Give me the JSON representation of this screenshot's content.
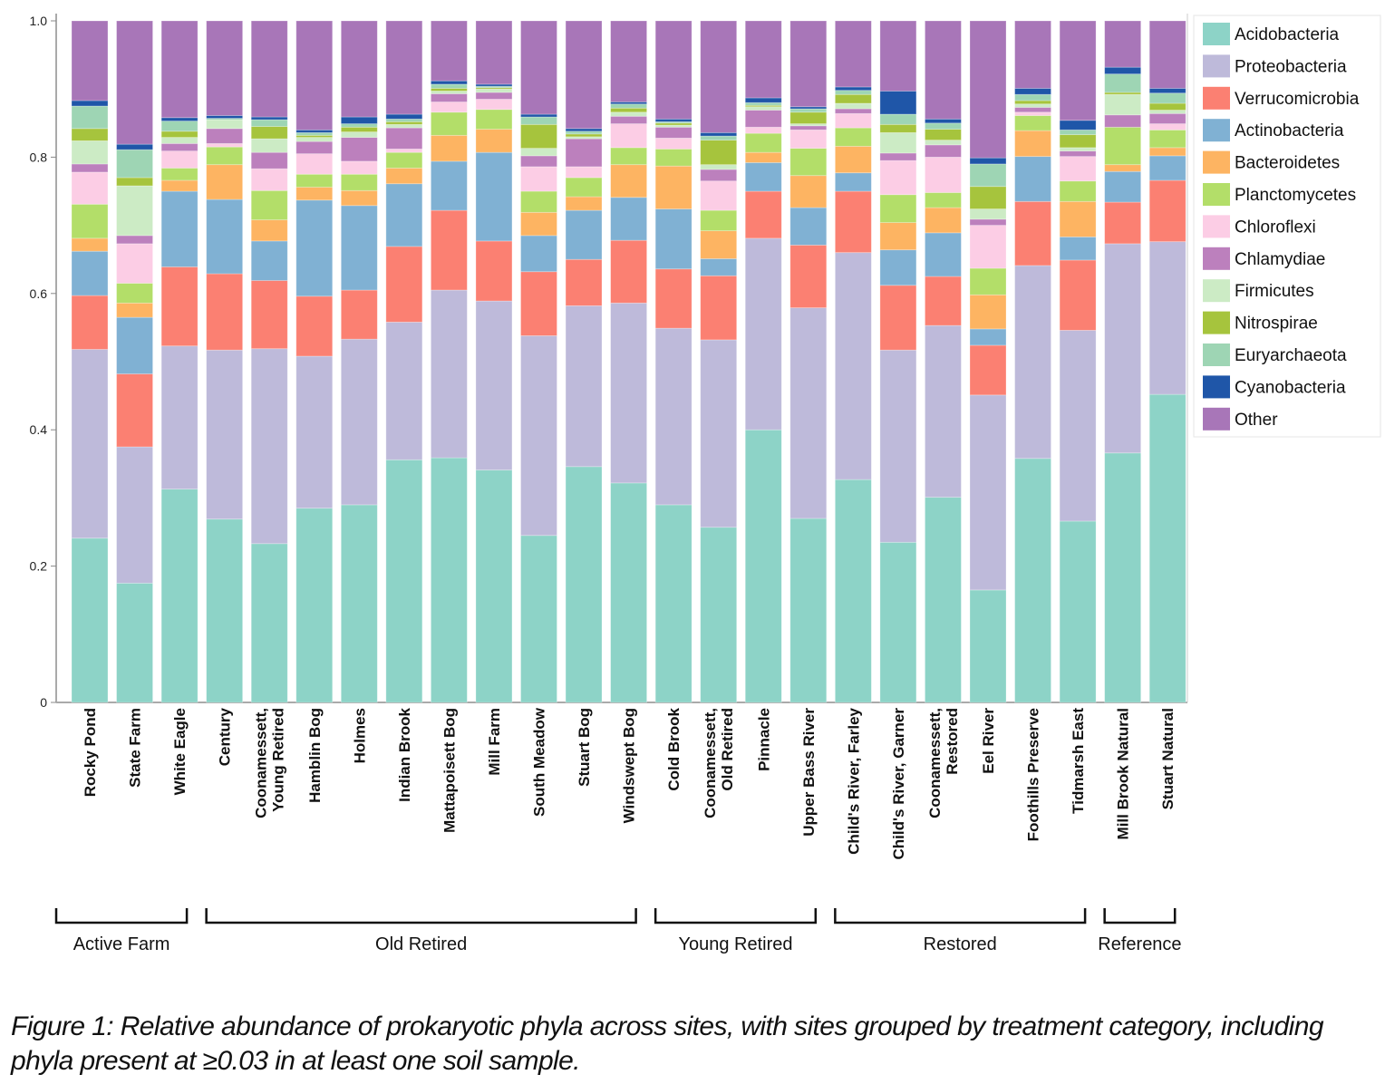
{
  "chart_data": {
    "type": "bar",
    "stacked": true,
    "title": "",
    "xlabel": "",
    "ylabel": "",
    "ylim": [
      0,
      1.0
    ],
    "yticks": [
      "0",
      "0.2",
      "0.4",
      "0.6",
      "0.8",
      "1.0"
    ],
    "ytick_values": [
      0,
      0.2,
      0.4,
      0.6,
      0.8,
      1.0
    ],
    "legend_position": "top-right",
    "categories": [
      "Rocky Pond",
      "State Farm",
      "White Eagle",
      "Century",
      "Coonamessett, Young Retired",
      "Hamblin Bog",
      "Holmes",
      "Indian Brook",
      "Mattapoisett Bog",
      "Mill Farm",
      "South Meadow",
      "Stuart Bog",
      "Windswept Bog",
      "Cold Brook",
      "Coonamessett, Old Retired",
      "Pinnacle",
      "Upper Bass River",
      "Child's River, Farley",
      "Child's River, Garner",
      "Coonamessett, Restored",
      "Eel River",
      "Foothills Preserve",
      "Tidmarsh East",
      "Mill Brook Natural",
      "Stuart Natural"
    ],
    "category_lines": [
      [
        "Rocky Pond"
      ],
      [
        "State Farm"
      ],
      [
        "White Eagle"
      ],
      [
        "Century"
      ],
      [
        "Coonamessett,",
        "Young Retired"
      ],
      [
        "Hamblin Bog"
      ],
      [
        "Holmes"
      ],
      [
        "Indian Brook"
      ],
      [
        "Mattapoisett Bog"
      ],
      [
        "Mill Farm"
      ],
      [
        "South Meadow"
      ],
      [
        "Stuart Bog"
      ],
      [
        "Windswept Bog"
      ],
      [
        "Cold Brook"
      ],
      [
        "Coonamessett,",
        "Old Retired"
      ],
      [
        "Pinnacle"
      ],
      [
        "Upper Bass River"
      ],
      [
        "Child's River, Farley"
      ],
      [
        "Child's River, Garner"
      ],
      [
        "Coonamessett,",
        "Restored"
      ],
      [
        "Eel River"
      ],
      [
        "Foothills Preserve"
      ],
      [
        "Tidmarsh East"
      ],
      [
        "Mill Brook Natural"
      ],
      [
        "Stuart Natural"
      ]
    ],
    "groups": [
      {
        "label": "Active Farm",
        "start": 0,
        "end": 2
      },
      {
        "label": "Old Retired",
        "start": 3,
        "end": 12
      },
      {
        "label": "Young Retired",
        "start": 13,
        "end": 16
      },
      {
        "label": "Restored",
        "start": 17,
        "end": 22
      },
      {
        "label": "Reference",
        "start": 23,
        "end": 24
      }
    ],
    "series": [
      {
        "name": "Acidobacteria",
        "color": "#8dd3c7",
        "values": [
          0.241,
          0.175,
          0.313,
          0.269,
          0.233,
          0.285,
          0.29,
          0.356,
          0.359,
          0.341,
          0.245,
          0.346,
          0.322,
          0.29,
          0.257,
          0.4,
          0.27,
          0.327,
          0.235,
          0.301,
          0.165,
          0.358,
          0.266,
          0.366,
          0.452
        ]
      },
      {
        "name": "Proteobacteria",
        "color": "#bebada",
        "values": [
          0.277,
          0.2,
          0.21,
          0.248,
          0.286,
          0.223,
          0.243,
          0.202,
          0.246,
          0.248,
          0.293,
          0.236,
          0.264,
          0.259,
          0.275,
          0.281,
          0.309,
          0.333,
          0.282,
          0.252,
          0.286,
          0.283,
          0.28,
          0.307,
          0.224
        ]
      },
      {
        "name": "Verrucomicrobia",
        "color": "#fb8072",
        "values": [
          0.079,
          0.107,
          0.116,
          0.112,
          0.1,
          0.088,
          0.072,
          0.111,
          0.117,
          0.088,
          0.094,
          0.068,
          0.092,
          0.087,
          0.094,
          0.069,
          0.092,
          0.09,
          0.095,
          0.072,
          0.073,
          0.094,
          0.103,
          0.061,
          0.09
        ]
      },
      {
        "name": "Actinobacteria",
        "color": "#80b1d3",
        "values": [
          0.065,
          0.083,
          0.111,
          0.109,
          0.058,
          0.141,
          0.124,
          0.092,
          0.072,
          0.13,
          0.053,
          0.072,
          0.063,
          0.088,
          0.025,
          0.042,
          0.055,
          0.027,
          0.052,
          0.064,
          0.024,
          0.066,
          0.034,
          0.045,
          0.036
        ]
      },
      {
        "name": "Bacteroidetes",
        "color": "#fdb462",
        "values": [
          0.019,
          0.021,
          0.016,
          0.051,
          0.031,
          0.019,
          0.022,
          0.023,
          0.038,
          0.034,
          0.034,
          0.02,
          0.048,
          0.063,
          0.041,
          0.015,
          0.047,
          0.039,
          0.04,
          0.037,
          0.05,
          0.038,
          0.052,
          0.01,
          0.012
        ]
      },
      {
        "name": "Planctomycetes",
        "color": "#b3de69",
        "values": [
          0.05,
          0.029,
          0.018,
          0.026,
          0.043,
          0.019,
          0.024,
          0.023,
          0.034,
          0.029,
          0.031,
          0.028,
          0.025,
          0.025,
          0.03,
          0.028,
          0.04,
          0.027,
          0.041,
          0.022,
          0.039,
          0.022,
          0.03,
          0.055,
          0.026
        ]
      },
      {
        "name": "Chloroflexi",
        "color": "#fccde5",
        "values": [
          0.047,
          0.058,
          0.025,
          0.005,
          0.032,
          0.03,
          0.019,
          0.005,
          0.015,
          0.015,
          0.036,
          0.016,
          0.035,
          0.016,
          0.043,
          0.009,
          0.027,
          0.021,
          0.05,
          0.052,
          0.063,
          0.005,
          0.036,
          0.0,
          0.009
        ]
      },
      {
        "name": "Chlamydiae",
        "color": "#bc80bd",
        "values": [
          0.012,
          0.012,
          0.011,
          0.022,
          0.024,
          0.018,
          0.035,
          0.031,
          0.012,
          0.01,
          0.016,
          0.041,
          0.011,
          0.016,
          0.017,
          0.025,
          0.006,
          0.007,
          0.011,
          0.018,
          0.009,
          0.007,
          0.008,
          0.018,
          0.015
        ]
      },
      {
        "name": "Firmicutes",
        "color": "#ccebc5",
        "values": [
          0.034,
          0.073,
          0.009,
          0.013,
          0.02,
          0.006,
          0.008,
          0.005,
          0.004,
          0.005,
          0.011,
          0.003,
          0.006,
          0.003,
          0.007,
          0.005,
          0.003,
          0.008,
          0.03,
          0.007,
          0.015,
          0.005,
          0.005,
          0.03,
          0.005
        ]
      },
      {
        "name": "Nitrospirae",
        "color": "#a6c43d",
        "values": [
          0.018,
          0.012,
          0.009,
          0.0,
          0.018,
          0.003,
          0.007,
          0.004,
          0.004,
          0.002,
          0.035,
          0.004,
          0.006,
          0.003,
          0.036,
          0.002,
          0.017,
          0.013,
          0.012,
          0.016,
          0.033,
          0.005,
          0.019,
          0.003,
          0.01
        ]
      },
      {
        "name": "Euryarchaeota",
        "color": "#9ed5b4",
        "values": [
          0.033,
          0.041,
          0.015,
          0.002,
          0.01,
          0.004,
          0.005,
          0.004,
          0.006,
          0.002,
          0.011,
          0.004,
          0.006,
          0.002,
          0.006,
          0.004,
          0.005,
          0.006,
          0.015,
          0.009,
          0.033,
          0.009,
          0.007,
          0.027,
          0.015
        ]
      },
      {
        "name": "Cyanobacteria",
        "color": "#1f56a8",
        "values": [
          0.008,
          0.008,
          0.005,
          0.004,
          0.004,
          0.004,
          0.01,
          0.007,
          0.005,
          0.003,
          0.004,
          0.004,
          0.003,
          0.004,
          0.005,
          0.007,
          0.003,
          0.005,
          0.034,
          0.006,
          0.009,
          0.009,
          0.014,
          0.01,
          0.007
        ]
      },
      {
        "name": "Other",
        "color": "#a876b8",
        "values": [
          0.117,
          0.181,
          0.142,
          0.139,
          0.141,
          0.16,
          0.141,
          0.137,
          0.088,
          0.093,
          0.135,
          0.158,
          0.109,
          0.147,
          0.164,
          0.103,
          0.126,
          0.097,
          0.103,
          0.134,
          0.201,
          0.086,
          0.146,
          0.068,
          0.099
        ]
      }
    ]
  },
  "caption": "Figure 1: Relative abundance of prokaryotic phyla across sites, with sites grouped by treatment category, including phyla present at ≥0.03 in at least one soil sample."
}
